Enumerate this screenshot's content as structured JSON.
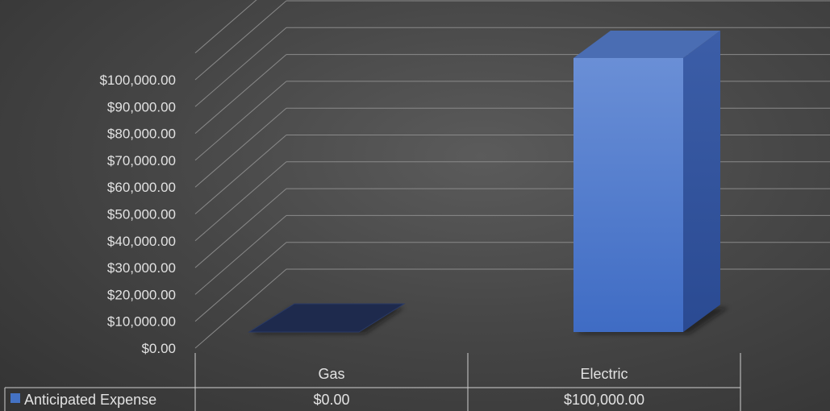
{
  "chart_data": {
    "type": "bar",
    "categories": [
      "Gas",
      "Electric"
    ],
    "series": [
      {
        "name": "Anticipated Expense",
        "values": [
          0,
          100000
        ],
        "color": "#4472c4"
      }
    ],
    "ylim": [
      0,
      100000
    ],
    "yticks": [
      "$0.00",
      "$10,000.00",
      "$20,000.00",
      "$30,000.00",
      "$40,000.00",
      "$50,000.00",
      "$60,000.00",
      "$70,000.00",
      "$80,000.00",
      "$90,000.00",
      "$100,000.00"
    ],
    "data_table": {
      "row_label": "Anticipated Expense",
      "values": [
        "$0.00",
        "$100,000.00"
      ]
    },
    "grid": true,
    "legend": "data-table",
    "style": "3d-column"
  }
}
